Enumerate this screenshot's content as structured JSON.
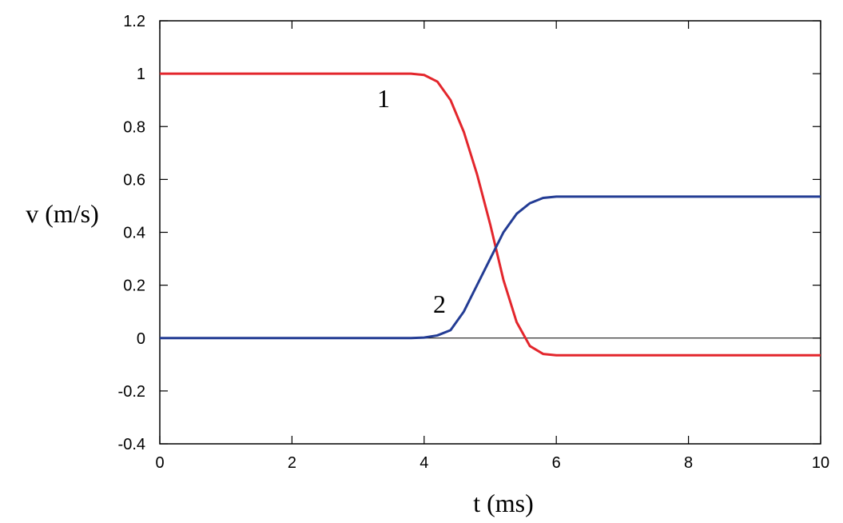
{
  "chart_data": {
    "type": "line",
    "x_label": "t (ms)",
    "y_label": "v (m/s)",
    "x": [
      0,
      1,
      2,
      3,
      3.8,
      4,
      4.2,
      4.4,
      4.6,
      4.8,
      5,
      5.2,
      5.4,
      5.6,
      5.8,
      6,
      7,
      8,
      9,
      10
    ],
    "series": [
      {
        "name": "1",
        "color": "#e3262c",
        "values": [
          1,
          1,
          1,
          1,
          1,
          0.995,
          0.97,
          0.9,
          0.78,
          0.62,
          0.43,
          0.22,
          0.06,
          -0.03,
          -0.06,
          -0.065,
          -0.065,
          -0.065,
          -0.065,
          -0.065
        ]
      },
      {
        "name": "2",
        "color": "#233c94",
        "values": [
          0,
          0,
          0,
          0,
          0,
          0.002,
          0.01,
          0.03,
          0.1,
          0.2,
          0.3,
          0.4,
          0.47,
          0.51,
          0.53,
          0.535,
          0.535,
          0.535,
          0.535,
          0.535
        ]
      }
    ],
    "xlim": [
      0,
      10
    ],
    "xticks": [
      0,
      2,
      4,
      6,
      8,
      10
    ],
    "ylim": [
      -0.4,
      1.2
    ],
    "yticks": [
      -0.4,
      -0.2,
      0,
      0.2,
      0.4,
      0.6,
      0.8,
      1,
      1.2
    ],
    "zero_line": true
  }
}
